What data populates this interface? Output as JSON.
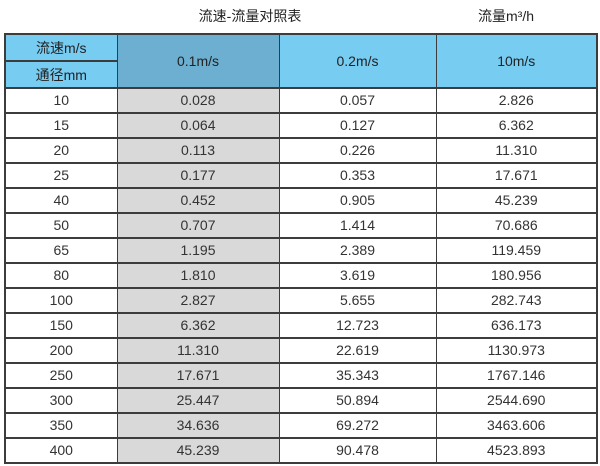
{
  "page": {
    "title": "流速-流量对照表",
    "unit_label": "流量m³/h"
  },
  "table": {
    "corner_top": "流速m/s",
    "corner_bottom": "通径mm",
    "velocity_columns": [
      "0.1m/s",
      "0.2m/s",
      "10m/s"
    ],
    "rows": [
      {
        "dn": "10",
        "values": [
          "0.028",
          "0.057",
          "2.826"
        ]
      },
      {
        "dn": "15",
        "values": [
          "0.064",
          "0.127",
          "6.362"
        ]
      },
      {
        "dn": "20",
        "values": [
          "0.113",
          "0.226",
          "11.310"
        ]
      },
      {
        "dn": "25",
        "values": [
          "0.177",
          "0.353",
          "17.671"
        ]
      },
      {
        "dn": "40",
        "values": [
          "0.452",
          "0.905",
          "45.239"
        ]
      },
      {
        "dn": "50",
        "values": [
          "0.707",
          "1.414",
          "70.686"
        ]
      },
      {
        "dn": "65",
        "values": [
          "1.195",
          "2.389",
          "119.459"
        ]
      },
      {
        "dn": "80",
        "values": [
          "1.810",
          "3.619",
          "180.956"
        ]
      },
      {
        "dn": "100",
        "values": [
          "2.827",
          "5.655",
          "282.743"
        ]
      },
      {
        "dn": "150",
        "values": [
          "6.362",
          "12.723",
          "636.173"
        ]
      },
      {
        "dn": "200",
        "values": [
          "11.310",
          "22.619",
          "1130.973"
        ]
      },
      {
        "dn": "250",
        "values": [
          "17.671",
          "35.343",
          "1767.146"
        ]
      },
      {
        "dn": "300",
        "values": [
          "25.447",
          "50.894",
          "2544.690"
        ]
      },
      {
        "dn": "350",
        "values": [
          "34.636",
          "69.272",
          "3463.606"
        ]
      },
      {
        "dn": "400",
        "values": [
          "45.239",
          "90.478",
          "4523.893"
        ]
      }
    ]
  },
  "colors": {
    "header_light_blue": "#77ccf2",
    "header_dark_blue": "#6cafd0",
    "shaded_column_gray": "#d9d9d9",
    "border": "#3c3c3c"
  },
  "chart_data": {
    "type": "table",
    "title": "流速-流量对照表",
    "unit": "流量m³/h",
    "row_header": "通径mm",
    "column_header": "流速m/s",
    "columns": [
      "0.1m/s",
      "0.2m/s",
      "10m/s"
    ],
    "diameters_mm": [
      10,
      15,
      20,
      25,
      40,
      50,
      65,
      80,
      100,
      150,
      200,
      250,
      300,
      350,
      400
    ],
    "series": [
      {
        "name": "0.1m/s",
        "values": [
          0.028,
          0.064,
          0.113,
          0.177,
          0.452,
          0.707,
          1.195,
          1.81,
          2.827,
          6.362,
          11.31,
          17.671,
          25.447,
          34.636,
          45.239
        ]
      },
      {
        "name": "0.2m/s",
        "values": [
          0.057,
          0.127,
          0.226,
          0.353,
          0.905,
          1.414,
          2.389,
          3.619,
          5.655,
          12.723,
          22.619,
          35.343,
          50.894,
          69.272,
          90.478
        ]
      },
      {
        "name": "10m/s",
        "values": [
          2.826,
          6.362,
          11.31,
          17.671,
          45.239,
          70.686,
          119.459,
          180.956,
          282.743,
          636.173,
          1130.973,
          1767.146,
          2544.69,
          3463.606,
          4523.893
        ]
      }
    ]
  }
}
